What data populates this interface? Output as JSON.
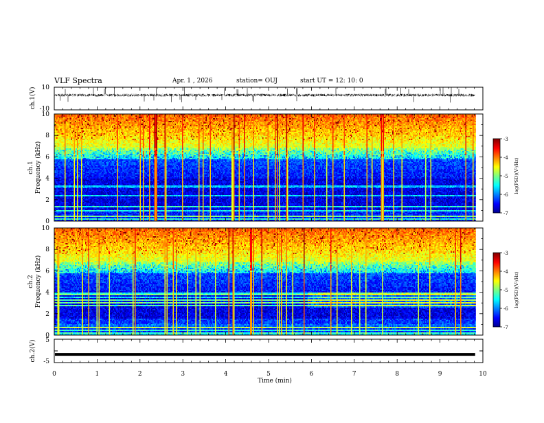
{
  "header": {
    "title": "VLF Spectra",
    "date": "Apr. 1 , 2026",
    "station": "station= OUJ",
    "start": "start  UT =   12: 10: 0"
  },
  "chart_data": [
    {
      "type": "line",
      "panel": "waveform-ch1",
      "ylabel": "ch.1(V)",
      "ylim": [
        -10,
        10
      ],
      "yticks": [
        "10",
        "-10"
      ],
      "xlim": [
        0,
        10
      ],
      "description_series": "dense noisy waveform centred near 3 V with spikes"
    },
    {
      "type": "heatmap",
      "panel": "spectrogram-ch1",
      "ylabel": "ch.1\nFrequency (kHz)",
      "ylabel_line1": "ch.1",
      "ylabel_line2": "Frequency (kHz)",
      "ylim": [
        0,
        10
      ],
      "yticks": [
        "0",
        "2",
        "4",
        "6",
        "8",
        "10"
      ],
      "xlim": [
        0,
        10
      ],
      "colorbar": {
        "label": "log(PSD)(V²/Hz)",
        "range": [
          -7,
          -3
        ],
        "ticks": [
          "-3",
          "-4",
          "-5",
          "-6",
          "-7"
        ]
      }
    },
    {
      "type": "heatmap",
      "panel": "spectrogram-ch2",
      "ylabel_line1": "ch.2",
      "ylabel_line2": "Frequency (kHz)",
      "ylim": [
        0,
        10
      ],
      "yticks": [
        "0",
        "2",
        "4",
        "6",
        "8",
        "10"
      ],
      "xlim": [
        0,
        10
      ],
      "colorbar": {
        "label": "log(PSD)(V²/Hz)",
        "range": [
          -7,
          -3
        ],
        "ticks": [
          "-3",
          "-4",
          "-5",
          "-6",
          "-7"
        ]
      }
    },
    {
      "type": "line",
      "panel": "waveform-ch2",
      "ylabel": "ch.2(V)",
      "ylim": [
        -5,
        5
      ],
      "yticks": [
        "5",
        "0",
        "-5"
      ],
      "xlim": [
        0,
        10
      ],
      "constant_value": -1.5
    }
  ],
  "xaxis": {
    "label": "Time (min)",
    "ticks": [
      "0",
      "1",
      "2",
      "3",
      "4",
      "5",
      "6",
      "7",
      "8",
      "9",
      "10"
    ],
    "data_end": 9.82
  },
  "colors": {
    "jet": [
      "#00008f",
      "#0000ff",
      "#00ffff",
      "#7fff7f",
      "#ffff00",
      "#ff7f00",
      "#ff0000",
      "#7f0000"
    ]
  }
}
